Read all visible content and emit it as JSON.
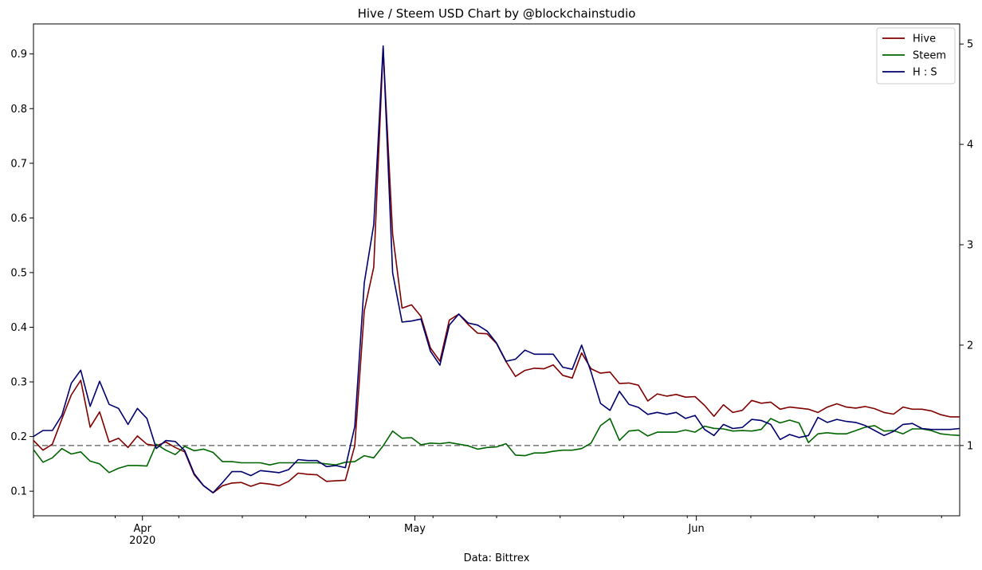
{
  "chart_data": {
    "type": "line",
    "title": "Hive / Steem USD Chart by @blockchainstudio",
    "xlabel": "Data: Bittrex",
    "x_start": "2020-03-20",
    "x_end": "2020-06-30",
    "x_ticks": [
      {
        "date": "2020-04-01",
        "label": "Apr",
        "sublabel": "2020"
      },
      {
        "date": "2020-05-01",
        "label": "May",
        "sublabel": ""
      },
      {
        "date": "2020-06-01",
        "label": "Jun",
        "sublabel": ""
      }
    ],
    "minor_tick_dates": [
      "2020-03-20",
      "2020-03-29",
      "2020-04-05",
      "2020-04-12",
      "2020-04-19",
      "2020-04-26",
      "2020-05-03",
      "2020-05-10",
      "2020-05-17",
      "2020-05-24",
      "2020-05-31",
      "2020-06-07",
      "2020-06-14",
      "2020-06-21",
      "2020-06-28"
    ],
    "y_left": {
      "ylim": [
        0.055,
        0.955
      ],
      "ticks": [
        0.1,
        0.2,
        0.3,
        0.4,
        0.5,
        0.6,
        0.7,
        0.8,
        0.9
      ],
      "tick_labels": [
        "0.1",
        "0.2",
        "0.3",
        "0.4",
        "0.5",
        "0.6",
        "0.7",
        "0.8",
        "0.9"
      ]
    },
    "y_right": {
      "ylim": [
        0.3,
        5.2
      ],
      "ticks": [
        1,
        2,
        3,
        4,
        5
      ],
      "tick_labels": [
        "1",
        "2",
        "3",
        "4",
        "5"
      ]
    },
    "reference_line": {
      "value": 1,
      "axis": "right",
      "style": "dashed",
      "color": "#808080"
    },
    "legend": {
      "position": "top-right"
    },
    "series": [
      {
        "name": "Hive",
        "axis": "left",
        "color": "#800000",
        "values": [
          0.193,
          0.175,
          0.186,
          0.232,
          0.276,
          0.303,
          0.217,
          0.245,
          0.19,
          0.197,
          0.18,
          0.201,
          0.186,
          0.183,
          0.19,
          0.18,
          0.172,
          0.13,
          0.11,
          0.097,
          0.11,
          0.115,
          0.116,
          0.109,
          0.115,
          0.113,
          0.11,
          0.118,
          0.133,
          0.131,
          0.13,
          0.118,
          0.119,
          0.12,
          0.183,
          0.43,
          0.51,
          0.91,
          0.57,
          0.435,
          0.441,
          0.42,
          0.362,
          0.338,
          0.413,
          0.424,
          0.405,
          0.389,
          0.388,
          0.37,
          0.337,
          0.31,
          0.321,
          0.325,
          0.324,
          0.331,
          0.312,
          0.307,
          0.353,
          0.324,
          0.316,
          0.318,
          0.297,
          0.298,
          0.294,
          0.265,
          0.278,
          0.274,
          0.277,
          0.272,
          0.273,
          0.257,
          0.237,
          0.258,
          0.244,
          0.248,
          0.266,
          0.261,
          0.263,
          0.25,
          0.254,
          0.252,
          0.25,
          0.244,
          0.254,
          0.26,
          0.254,
          0.252,
          0.255,
          0.251,
          0.244,
          0.241,
          0.254,
          0.25,
          0.25,
          0.247,
          0.24,
          0.236,
          0.236
        ]
      },
      {
        "name": "Steem",
        "axis": "left",
        "color": "#006400",
        "values": [
          0.176,
          0.153,
          0.161,
          0.178,
          0.168,
          0.172,
          0.155,
          0.15,
          0.134,
          0.142,
          0.147,
          0.147,
          0.146,
          0.186,
          0.175,
          0.167,
          0.182,
          0.174,
          0.177,
          0.171,
          0.154,
          0.154,
          0.152,
          0.152,
          0.152,
          0.148,
          0.152,
          0.152,
          0.152,
          0.152,
          0.152,
          0.15,
          0.148,
          0.153,
          0.154,
          0.165,
          0.161,
          0.183,
          0.21,
          0.197,
          0.198,
          0.185,
          0.188,
          0.187,
          0.189,
          0.186,
          0.183,
          0.177,
          0.18,
          0.181,
          0.187,
          0.166,
          0.165,
          0.17,
          0.17,
          0.173,
          0.175,
          0.175,
          0.178,
          0.188,
          0.22,
          0.233,
          0.193,
          0.21,
          0.212,
          0.201,
          0.208,
          0.208,
          0.208,
          0.212,
          0.208,
          0.219,
          0.215,
          0.214,
          0.21,
          0.211,
          0.21,
          0.213,
          0.233,
          0.225,
          0.23,
          0.225,
          0.189,
          0.205,
          0.207,
          0.205,
          0.205,
          0.211,
          0.217,
          0.22,
          0.21,
          0.211,
          0.205,
          0.214,
          0.214,
          0.211,
          0.205,
          0.203,
          0.202
        ]
      },
      {
        "name": "H : S",
        "axis": "right",
        "color": "#00006e",
        "values": [
          1.09,
          1.15,
          1.15,
          1.3,
          1.62,
          1.75,
          1.39,
          1.64,
          1.41,
          1.37,
          1.21,
          1.37,
          1.27,
          0.97,
          1.05,
          1.04,
          0.95,
          0.72,
          0.6,
          0.53,
          0.63,
          0.74,
          0.74,
          0.7,
          0.75,
          0.74,
          0.73,
          0.76,
          0.86,
          0.85,
          0.85,
          0.79,
          0.8,
          0.78,
          1.19,
          2.62,
          3.2,
          4.98,
          2.72,
          2.23,
          2.24,
          2.26,
          1.94,
          1.8,
          2.2,
          2.31,
          2.22,
          2.2,
          2.14,
          2.02,
          1.84,
          1.86,
          1.95,
          1.91,
          1.91,
          1.91,
          1.78,
          1.76,
          2.0,
          1.73,
          1.42,
          1.35,
          1.54,
          1.41,
          1.38,
          1.31,
          1.33,
          1.31,
          1.33,
          1.27,
          1.3,
          1.16,
          1.1,
          1.21,
          1.17,
          1.18,
          1.26,
          1.25,
          1.21,
          1.06,
          1.11,
          1.08,
          1.1,
          1.28,
          1.23,
          1.26,
          1.24,
          1.23,
          1.2,
          1.15,
          1.1,
          1.14,
          1.21,
          1.22,
          1.17,
          1.16,
          1.16,
          1.16,
          1.17
        ]
      }
    ]
  }
}
